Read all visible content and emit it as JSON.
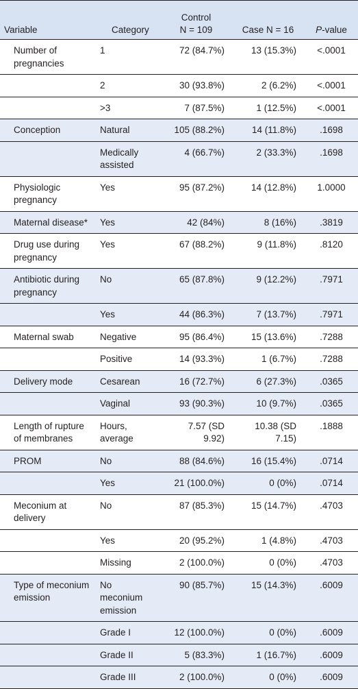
{
  "header": {
    "variable": "Variable",
    "category": "Category",
    "control_line1": "Control",
    "control_line2": "N = 109",
    "case": "Case N = 16",
    "pvalue_italic": "P",
    "pvalue_rest": "-value"
  },
  "rows": [
    {
      "variable": "Number of pregnancies",
      "category": "1",
      "control": "72 (84.7%)",
      "case": "13 (15.3%)",
      "p": "<.0001"
    },
    {
      "variable": "",
      "category": "2",
      "control": "30 (93.8%)",
      "case": "2 (6.2%)",
      "p": "<.0001"
    },
    {
      "variable": "",
      "category": ">3",
      "control": "7 (87.5%)",
      "case": "1 (12.5%)",
      "p": "<.0001"
    },
    {
      "variable": "Conception",
      "category": "Natural",
      "control": "105 (88.2%)",
      "case": "14 (11.8%)",
      "p": ".1698"
    },
    {
      "variable": "",
      "category": "Medically assisted",
      "control": "4 (66.7%)",
      "case": "2 (33.3%)",
      "p": ".1698"
    },
    {
      "variable": "Physiologic pregnancy",
      "category": "Yes",
      "control": "95 (87.2%)",
      "case": "14 (12.8%)",
      "p": "1.0000"
    },
    {
      "variable": "Maternal disease*",
      "category": "Yes",
      "control": "42 (84%)",
      "case": "8 (16%)",
      "p": ".3819"
    },
    {
      "variable": "Drug use during pregnancy",
      "category": "Yes",
      "control": "67 (88.2%)",
      "case": "9 (11.8%)",
      "p": ".8120"
    },
    {
      "variable": "Antibiotic during pregnancy",
      "category": "No",
      "control": "65 (87.8%)",
      "case": "9 (12.2%)",
      "p": ".7971"
    },
    {
      "variable": "",
      "category": "Yes",
      "control": "44 (86.3%)",
      "case": "7 (13.7%)",
      "p": ".7971"
    },
    {
      "variable": "Maternal swab",
      "category": "Negative",
      "control": "95 (86.4%)",
      "case": "15 (13.6%)",
      "p": ".7288"
    },
    {
      "variable": "",
      "category": "Positive",
      "control": "14 (93.3%)",
      "case": "1 (6.7%)",
      "p": ".7288"
    },
    {
      "variable": "Delivery mode",
      "category": "Cesarean",
      "control": "16 (72.7%)",
      "case": "6 (27.3%)",
      "p": ".0365"
    },
    {
      "variable": "",
      "category": "Vaginal",
      "control": "93 (90.3%)",
      "case": "10 (9.7%)",
      "p": ".0365"
    },
    {
      "variable": "Length of rupture of membranes",
      "category": "Hours, average",
      "control": "7.57 (SD 9.92)",
      "case": "10.38 (SD 7.15)",
      "p": ".1888"
    },
    {
      "variable": "PROM",
      "category": "No",
      "control": "88 (84.6%)",
      "case": "16 (15.4%)",
      "p": ".0714"
    },
    {
      "variable": "",
      "category": "Yes",
      "control": "21 (100.0%)",
      "case": "0 (0%)",
      "p": ".0714"
    },
    {
      "variable": "Meconium at delivery",
      "category": "No",
      "control": "87 (85.3%)",
      "case": "15 (14.7%)",
      "p": ".4703"
    },
    {
      "variable": "",
      "category": "Yes",
      "control": "20 (95.2%)",
      "case": "1 (4.8%)",
      "p": ".4703"
    },
    {
      "variable": "",
      "category": "Missing",
      "control": "2 (100.0%)",
      "case": "0 (0%)",
      "p": ".4703"
    },
    {
      "variable": "Type of meconium emission",
      "category": "No meconium emission",
      "control": "90 (85.7%)",
      "case": "15 (14.3%)",
      "p": ".6009"
    },
    {
      "variable": "",
      "category": "Grade I",
      "control": "12 (100.0%)",
      "case": "0 (0%)",
      "p": ".6009"
    },
    {
      "variable": "",
      "category": "Grade II",
      "control": "5 (83.3%)",
      "case": "1 (16.7%)",
      "p": ".6009"
    },
    {
      "variable": "",
      "category": "Grade III",
      "control": "2 (100.0%)",
      "case": "0 (0%)",
      "p": ".6009"
    }
  ]
}
